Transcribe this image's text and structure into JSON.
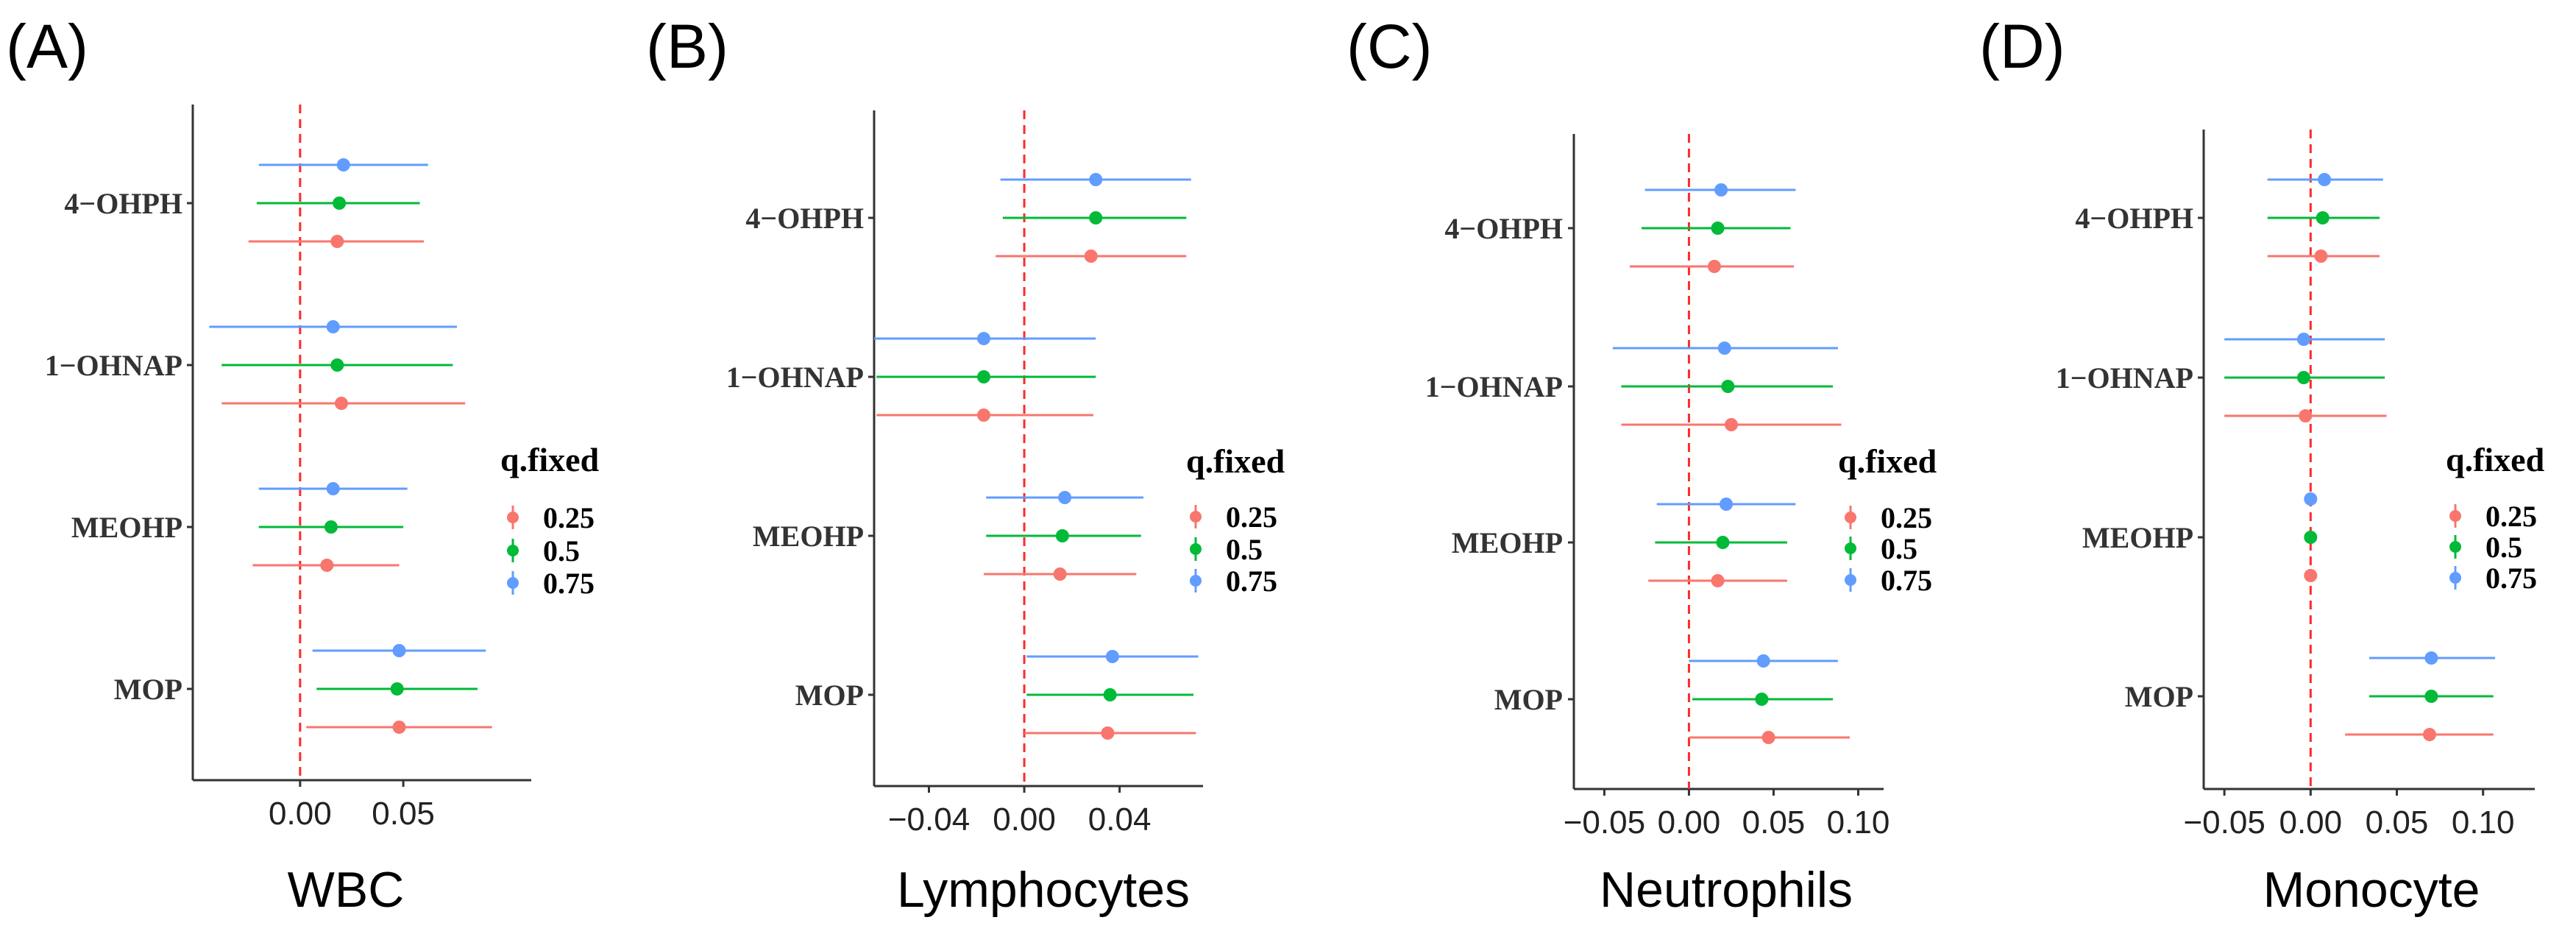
{
  "chart_data": [
    {
      "type": "scatter",
      "panel": "(A)",
      "xlabel": "WBC",
      "categories": [
        "4−OHPH",
        "1−OHNAP",
        "MEOHP",
        "MOP"
      ],
      "xlim": [
        -0.052,
        0.112
      ],
      "xticks": [
        0.0,
        0.05
      ],
      "xtick_labels": [
        "0.00",
        "0.05"
      ],
      "reference_line": 0,
      "legend": {
        "title": "q.fixed",
        "entries": [
          "0.25",
          "0.5",
          "0.75"
        ]
      },
      "series": [
        {
          "name": "0.25",
          "color": "#F8766D",
          "points": [
            {
              "category": "4−OHPH",
              "estimate": 0.018,
              "low": -0.025,
              "high": 0.06
            },
            {
              "category": "1−OHNAP",
              "estimate": 0.02,
              "low": -0.038,
              "high": 0.08
            },
            {
              "category": "MEOHP",
              "estimate": 0.013,
              "low": -0.023,
              "high": 0.048
            },
            {
              "category": "MOP",
              "estimate": 0.048,
              "low": 0.003,
              "high": 0.093
            }
          ]
        },
        {
          "name": "0.5",
          "color": "#00BA38",
          "points": [
            {
              "category": "4−OHPH",
              "estimate": 0.019,
              "low": -0.021,
              "high": 0.058
            },
            {
              "category": "1−OHNAP",
              "estimate": 0.018,
              "low": -0.038,
              "high": 0.074
            },
            {
              "category": "MEOHP",
              "estimate": 0.015,
              "low": -0.02,
              "high": 0.05
            },
            {
              "category": "MOP",
              "estimate": 0.047,
              "low": 0.008,
              "high": 0.086
            }
          ]
        },
        {
          "name": "0.75",
          "color": "#619CFF",
          "points": [
            {
              "category": "4−OHPH",
              "estimate": 0.021,
              "low": -0.02,
              "high": 0.062
            },
            {
              "category": "1−OHNAP",
              "estimate": 0.016,
              "low": -0.044,
              "high": 0.076
            },
            {
              "category": "MEOHP",
              "estimate": 0.016,
              "low": -0.02,
              "high": 0.052
            },
            {
              "category": "MOP",
              "estimate": 0.048,
              "low": 0.006,
              "high": 0.09
            }
          ]
        }
      ]
    },
    {
      "type": "scatter",
      "panel": "(B)",
      "xlabel": "Lymphocytes",
      "categories": [
        "4−OHPH",
        "1−OHNAP",
        "MEOHP",
        "MOP"
      ],
      "xlim": [
        -0.063,
        0.075
      ],
      "xticks": [
        -0.04,
        0.0,
        0.04
      ],
      "xtick_labels": [
        "−0.04",
        "0.00",
        "0.04"
      ],
      "reference_line": 0,
      "legend": {
        "title": "q.fixed",
        "entries": [
          "0.25",
          "0.5",
          "0.75"
        ]
      },
      "series": [
        {
          "name": "0.25",
          "color": "#F8766D",
          "points": [
            {
              "category": "4−OHPH",
              "estimate": 0.028,
              "low": -0.012,
              "high": 0.068
            },
            {
              "category": "1−OHNAP",
              "estimate": -0.017,
              "low": -0.062,
              "high": 0.029
            },
            {
              "category": "MEOHP",
              "estimate": 0.015,
              "low": -0.017,
              "high": 0.047
            },
            {
              "category": "MOP",
              "estimate": 0.035,
              "low": 0.0,
              "high": 0.072
            }
          ]
        },
        {
          "name": "0.5",
          "color": "#00BA38",
          "points": [
            {
              "category": "4−OHPH",
              "estimate": 0.03,
              "low": -0.009,
              "high": 0.068
            },
            {
              "category": "1−OHNAP",
              "estimate": -0.017,
              "low": -0.062,
              "high": 0.03
            },
            {
              "category": "MEOHP",
              "estimate": 0.016,
              "low": -0.016,
              "high": 0.049
            },
            {
              "category": "MOP",
              "estimate": 0.036,
              "low": 0.001,
              "high": 0.071
            }
          ]
        },
        {
          "name": "0.75",
          "color": "#619CFF",
          "points": [
            {
              "category": "4−OHPH",
              "estimate": 0.03,
              "low": -0.01,
              "high": 0.07
            },
            {
              "category": "1−OHNAP",
              "estimate": -0.017,
              "low": -0.063,
              "high": 0.03
            },
            {
              "category": "MEOHP",
              "estimate": 0.017,
              "low": -0.016,
              "high": 0.05
            },
            {
              "category": "MOP",
              "estimate": 0.037,
              "low": 0.001,
              "high": 0.073
            }
          ]
        }
      ]
    },
    {
      "type": "scatter",
      "panel": "(C)",
      "xlabel": "Neutrophils",
      "categories": [
        "4−OHPH",
        "1−OHNAP",
        "MEOHP",
        "MOP"
      ],
      "xlim": [
        -0.068,
        0.115
      ],
      "xticks": [
        -0.05,
        0.0,
        0.05,
        0.1
      ],
      "xtick_labels": [
        "−0.05",
        "0.00",
        "0.05",
        "0.10"
      ],
      "reference_line": 0,
      "legend": {
        "title": "q.fixed",
        "entries": [
          "0.25",
          "0.5",
          "0.75"
        ]
      },
      "series": [
        {
          "name": "0.25",
          "color": "#F8766D",
          "points": [
            {
              "category": "4−OHPH",
              "estimate": 0.015,
              "low": -0.035,
              "high": 0.062
            },
            {
              "category": "1−OHNAP",
              "estimate": 0.025,
              "low": -0.04,
              "high": 0.09
            },
            {
              "category": "MEOHP",
              "estimate": 0.017,
              "low": -0.024,
              "high": 0.058
            },
            {
              "category": "MOP",
              "estimate": 0.047,
              "low": 0.0,
              "high": 0.095
            }
          ]
        },
        {
          "name": "0.5",
          "color": "#00BA38",
          "points": [
            {
              "category": "4−OHPH",
              "estimate": 0.017,
              "low": -0.028,
              "high": 0.06
            },
            {
              "category": "1−OHNAP",
              "estimate": 0.023,
              "low": -0.04,
              "high": 0.085
            },
            {
              "category": "MEOHP",
              "estimate": 0.02,
              "low": -0.02,
              "high": 0.058
            },
            {
              "category": "MOP",
              "estimate": 0.043,
              "low": 0.002,
              "high": 0.085
            }
          ]
        },
        {
          "name": "0.75",
          "color": "#619CFF",
          "points": [
            {
              "category": "4−OHPH",
              "estimate": 0.019,
              "low": -0.026,
              "high": 0.063
            },
            {
              "category": "1−OHNAP",
              "estimate": 0.021,
              "low": -0.045,
              "high": 0.088
            },
            {
              "category": "MEOHP",
              "estimate": 0.022,
              "low": -0.019,
              "high": 0.063
            },
            {
              "category": "MOP",
              "estimate": 0.044,
              "low": 0.0,
              "high": 0.088
            }
          ]
        }
      ]
    },
    {
      "type": "scatter",
      "panel": "(D)",
      "xlabel": "Monocyte",
      "categories": [
        "4−OHPH",
        "1−OHNAP",
        "MEOHP",
        "MOP"
      ],
      "xlim": [
        -0.062,
        0.13
      ],
      "xticks": [
        -0.05,
        0.0,
        0.05,
        0.1
      ],
      "xtick_labels": [
        "−0.05",
        "0.00",
        "0.05",
        "0.10"
      ],
      "reference_line": 0,
      "legend": {
        "title": "q.fixed",
        "entries": [
          "0.25",
          "0.5",
          "0.75"
        ]
      },
      "series": [
        {
          "name": "0.25",
          "color": "#F8766D",
          "points": [
            {
              "category": "4−OHPH",
              "estimate": 0.006,
              "low": -0.025,
              "high": 0.04
            },
            {
              "category": "1−OHNAP",
              "estimate": -0.003,
              "low": -0.05,
              "high": 0.044
            },
            {
              "category": "MEOHP",
              "estimate": 0.0,
              "low": -0.002,
              "high": 0.002
            },
            {
              "category": "MOP",
              "estimate": 0.069,
              "low": 0.02,
              "high": 0.106
            }
          ]
        },
        {
          "name": "0.5",
          "color": "#00BA38",
          "points": [
            {
              "category": "4−OHPH",
              "estimate": 0.007,
              "low": -0.025,
              "high": 0.04
            },
            {
              "category": "1−OHNAP",
              "estimate": -0.004,
              "low": -0.05,
              "high": 0.043
            },
            {
              "category": "MEOHP",
              "estimate": 0.0,
              "low": -0.002,
              "high": 0.002
            },
            {
              "category": "MOP",
              "estimate": 0.07,
              "low": 0.034,
              "high": 0.106
            }
          ]
        },
        {
          "name": "0.75",
          "color": "#619CFF",
          "points": [
            {
              "category": "4−OHPH",
              "estimate": 0.008,
              "low": -0.025,
              "high": 0.042
            },
            {
              "category": "1−OHNAP",
              "estimate": -0.004,
              "low": -0.05,
              "high": 0.043
            },
            {
              "category": "MEOHP",
              "estimate": 0.0,
              "low": -0.002,
              "high": 0.002
            },
            {
              "category": "MOP",
              "estimate": 0.07,
              "low": 0.034,
              "high": 0.107
            }
          ]
        }
      ]
    }
  ]
}
